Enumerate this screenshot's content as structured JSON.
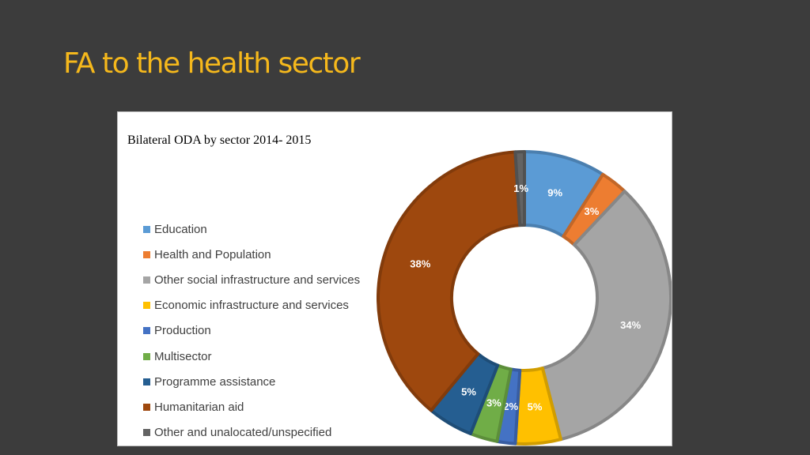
{
  "slide": {
    "title": "FA to the health sector"
  },
  "chart_data": {
    "type": "pie",
    "title": "Bilateral ODA by sector 2014- 2015",
    "legend_position": "left",
    "series": [
      {
        "name": "Education",
        "value": 9,
        "label": "9%",
        "color": "#5b9bd5",
        "label_color": "#ffffff"
      },
      {
        "name": "Health and Population",
        "value": 3,
        "label": "3%",
        "color": "#ed7d31",
        "label_color": "#ffffff"
      },
      {
        "name": "Other social infrastructure and services",
        "value": 34,
        "label": "34%",
        "color": "#a5a5a5",
        "label_color": "#ffffff"
      },
      {
        "name": "Economic infrastructure and services",
        "value": 5,
        "label": "5%",
        "color": "#ffc000",
        "label_color": "#ffffff"
      },
      {
        "name": "Production",
        "value": 2,
        "label": "2%",
        "color": "#4472c4",
        "label_color": "#ffffff"
      },
      {
        "name": "Multisector",
        "value": 3,
        "label": "3%",
        "color": "#70ad47",
        "label_color": "#ffffff"
      },
      {
        "name": "Programme assistance",
        "value": 5,
        "label": "5%",
        "color": "#255e91",
        "label_color": "#ffffff"
      },
      {
        "name": "Humanitarian aid",
        "value": 38,
        "label": "38%",
        "color": "#9e480e",
        "label_color": "#ffffff"
      },
      {
        "name": "Other and unalocated/unspecified",
        "value": 1,
        "label": "1%",
        "color": "#636363",
        "label_color": "#ffffff"
      }
    ]
  }
}
